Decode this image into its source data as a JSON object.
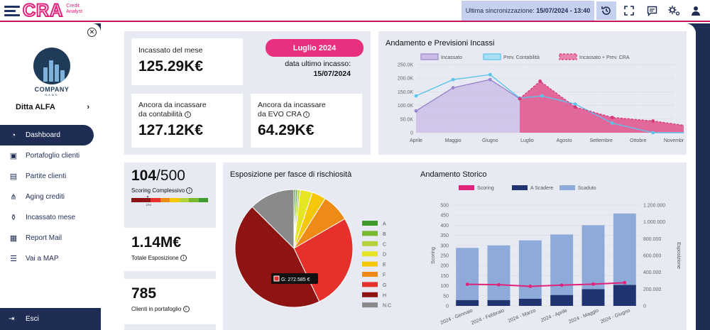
{
  "app": {
    "logo_text": "CRA",
    "logo_sub_1": "Credit",
    "logo_sub_2": "Analyst",
    "sync_label": "Ultima sincronizzazione:",
    "sync_value": "15/07/2024 - 13:40",
    "toolbar_icons": [
      "history-icon",
      "fullscreen-icon",
      "message-icon",
      "settings-icon",
      "user-icon"
    ]
  },
  "sidebar": {
    "company_name": "COMPANY",
    "company_tag": "NAME",
    "ditta": "Ditta ALFA",
    "items": [
      {
        "label": "Dashboard",
        "icon": "speedometer-icon",
        "active": true
      },
      {
        "label": "Portafoglio clienti",
        "icon": "briefcase-icon"
      },
      {
        "label": "Partite clienti",
        "icon": "document-euro-icon"
      },
      {
        "label": "Aging crediti",
        "icon": "hierarchy-icon"
      },
      {
        "label": "Incassato mese",
        "icon": "money-bag-icon"
      },
      {
        "label": "Report Mail",
        "icon": "report-icon"
      },
      {
        "label": "Vai a MAP",
        "icon": "map-icon"
      }
    ],
    "exit": "Esci"
  },
  "kpi": {
    "incassato_label": "Incassato del mese",
    "incassato_value": "125.29K€",
    "month": "Luglio 2024",
    "last_label": "data ultimo incasso:",
    "last_value": "15/07/2024",
    "contab_label_1": "Ancora da incassare",
    "contab_label_2": "da contabilità",
    "contab_value": "127.12K€",
    "evo_label_1": "Ancora da incassare",
    "evo_label_2": "da EVO CRA",
    "evo_value": "64.29K€",
    "scoring_value": "104",
    "scoring_sep": "/",
    "scoring_max": "500",
    "scoring_label": "Scoring Complessivo",
    "scoring_marker": "104",
    "scoring_fraction": 0.208,
    "esposizione_value": "1.14M€",
    "esposizione_label": "Totale Esposizione",
    "clienti_value": "785",
    "clienti_label": "Clienti in portafoglio"
  },
  "chart_data": [
    {
      "type": "line",
      "title": "Andamento e Previsioni Incassi",
      "x": [
        "Aprile",
        "Maggio",
        "Giugno",
        "Luglio",
        "Agosto",
        "Settembre",
        "Ottobre",
        "Novembre"
      ],
      "ylim": [
        0,
        250000
      ],
      "yticks": [
        "0",
        "50.0K",
        "100.0K",
        "150.0K",
        "200.0K",
        "250.0K"
      ],
      "series": [
        {
          "name": "Incassato",
          "color": "#9b86c9",
          "points": [
            [
              0,
              80000
            ],
            [
              1,
              165000
            ],
            [
              2,
              195000
            ],
            [
              2.8,
              125000
            ]
          ]
        },
        {
          "name": "Prev. Contabilità",
          "color": "#5ec3ea",
          "points": [
            [
              0,
              135000
            ],
            [
              1,
              195000
            ],
            [
              2,
              213000
            ],
            [
              2.8,
              127000
            ],
            [
              3.4,
              135000
            ],
            [
              4.3,
              105000
            ],
            [
              5.3,
              35000
            ],
            [
              6.4,
              0
            ],
            [
              7.5,
              0
            ]
          ]
        },
        {
          "name": "Incassato + Prev. CRA",
          "color": "#d4397a",
          "points": [
            [
              2.8,
              125000
            ],
            [
              3.35,
              189000
            ],
            [
              4.3,
              94000
            ],
            [
              5.3,
              56000
            ],
            [
              6.4,
              43000
            ],
            [
              7.5,
              22000
            ]
          ]
        }
      ]
    },
    {
      "type": "pie",
      "title": "Esposizione per fasce di rischiosità",
      "categories": [
        "A",
        "B",
        "C",
        "D",
        "E",
        "F",
        "G",
        "H",
        "N.C."
      ],
      "colors": [
        "#3e9a2a",
        "#79b92f",
        "#b2d33a",
        "#e5e524",
        "#f5c60a",
        "#ee8a16",
        "#e6302b",
        "#8e1313",
        "#8a8a8a"
      ],
      "values": [
        5000,
        6000,
        6500,
        35000,
        40000,
        80000,
        272585,
        462000,
        130000
      ],
      "tooltip": "G: 272.585 €"
    },
    {
      "type": "bar",
      "title": "Andamento Storico",
      "categories": [
        "2024 - Gennaio",
        "2024 - Febbraio",
        "2024 - Marzo",
        "2024 - Aprile",
        "2024 - Maggio",
        "2024 - Giugno"
      ],
      "ylabel": "Scoring",
      "y2label": "Esposizione",
      "ylim": [
        0,
        500
      ],
      "y2lim": [
        0,
        1200000
      ],
      "yticks": [
        "0",
        "50",
        "100",
        "150",
        "200",
        "250",
        "300",
        "350",
        "400",
        "450",
        "500"
      ],
      "y2ticks": [
        "0",
        "200.000",
        "400.000",
        "600.000",
        "800.000",
        "1.000.000",
        "1.200.000"
      ],
      "series": [
        {
          "name": "Scoring",
          "color": "#e0227a",
          "values": [
            107,
            105,
            97,
            103,
            108,
            115
          ]
        },
        {
          "name": "A Scadere",
          "color": "#1f3470",
          "values": [
            70000,
            70000,
            85000,
            130000,
            200000,
            250000
          ]
        },
        {
          "name": "Scaduto",
          "color": "#8eaad9",
          "values": [
            690000,
            720000,
            780000,
            850000,
            960000,
            1100000
          ]
        }
      ]
    }
  ]
}
